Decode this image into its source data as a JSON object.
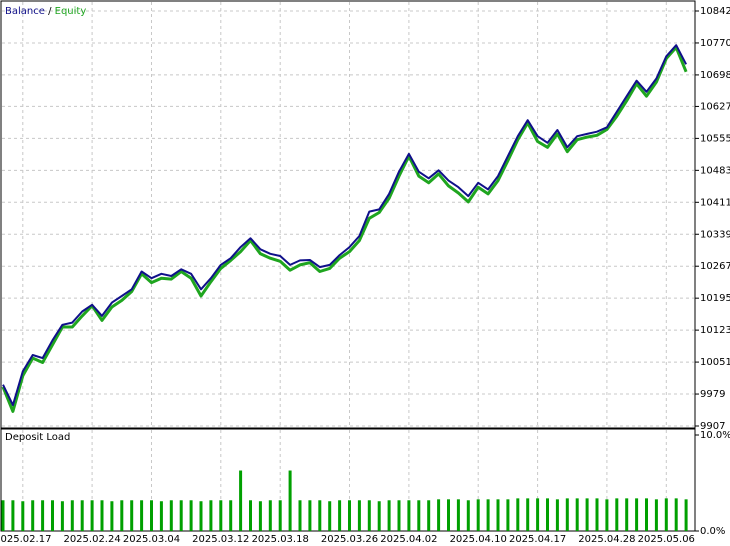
{
  "chart_data": [
    {
      "type": "line",
      "legend_separator": "/",
      "series": [
        {
          "name": "Balance",
          "color": "#10108a",
          "values": [
            10000,
            9954,
            10030,
            10067,
            10060,
            10100,
            10135,
            10140,
            10165,
            10180,
            10155,
            10185,
            10200,
            10215,
            10255,
            10240,
            10250,
            10245,
            10260,
            10250,
            10215,
            10240,
            10270,
            10285,
            10310,
            10330,
            10305,
            10295,
            10290,
            10270,
            10280,
            10281,
            10265,
            10270,
            10292,
            10310,
            10335,
            10390,
            10395,
            10430,
            10480,
            10520,
            10480,
            10465,
            10483,
            10460,
            10445,
            10425,
            10455,
            10440,
            10470,
            10515,
            10560,
            10596,
            10560,
            10545,
            10574,
            10535,
            10560,
            10565,
            10570,
            10580,
            10615,
            10650,
            10685,
            10660,
            10690,
            10740,
            10765,
            10722
          ]
        },
        {
          "name": "Equity",
          "color": "#1fa51f",
          "values": [
            9995,
            9940,
            10020,
            10060,
            10050,
            10090,
            10130,
            10130,
            10155,
            10178,
            10145,
            10175,
            10190,
            10210,
            10250,
            10230,
            10240,
            10238,
            10255,
            10240,
            10200,
            10232,
            10262,
            10280,
            10300,
            10325,
            10295,
            10285,
            10278,
            10258,
            10270,
            10275,
            10255,
            10262,
            10285,
            10300,
            10325,
            10375,
            10388,
            10420,
            10470,
            10515,
            10470,
            10455,
            10475,
            10448,
            10432,
            10412,
            10445,
            10430,
            10460,
            10505,
            10552,
            10590,
            10548,
            10535,
            10565,
            10525,
            10552,
            10558,
            10562,
            10575,
            10605,
            10640,
            10678,
            10650,
            10682,
            10735,
            10760,
            10705
          ]
        }
      ],
      "ylim": [
        9907,
        10842
      ],
      "yticks": [
        9907,
        9979,
        10051,
        10123,
        10195,
        10267,
        10339,
        10411,
        10483,
        10555,
        10627,
        10698,
        10770,
        10842
      ],
      "grid": true
    },
    {
      "type": "bar",
      "title": "Deposit Load",
      "color": "#00a000",
      "categories": [
        null,
        null,
        "2025.02.17",
        null,
        null,
        null,
        null,
        null,
        null,
        "2025.02.24",
        null,
        null,
        null,
        null,
        null,
        "2025.03.04",
        null,
        null,
        null,
        null,
        null,
        null,
        "2025.03.12",
        null,
        null,
        null,
        null,
        null,
        "2025.03.18",
        null,
        null,
        null,
        null,
        null,
        null,
        "2025.03.26",
        null,
        null,
        null,
        null,
        null,
        "2025.04.02",
        null,
        null,
        null,
        null,
        null,
        null,
        "2025.04.10",
        null,
        null,
        null,
        null,
        null,
        "2025.04.17",
        null,
        null,
        null,
        null,
        null,
        null,
        "2025.04.28",
        null,
        null,
        null,
        null,
        null,
        "2025.05.06",
        null,
        null
      ],
      "values": [
        3.2,
        3.2,
        3.1,
        3.2,
        3.2,
        3.2,
        3.1,
        3.2,
        3.2,
        3.2,
        3.2,
        3.1,
        3.2,
        3.2,
        3.2,
        3.2,
        3.1,
        3.2,
        3.2,
        3.2,
        3.1,
        3.2,
        3.2,
        3.2,
        6.3,
        3.2,
        3.1,
        3.2,
        3.2,
        6.3,
        3.2,
        3.2,
        3.2,
        3.1,
        3.2,
        3.2,
        3.2,
        3.2,
        3.1,
        3.2,
        3.2,
        3.2,
        3.2,
        3.2,
        3.3,
        3.3,
        3.3,
        3.2,
        3.3,
        3.3,
        3.3,
        3.3,
        3.4,
        3.4,
        3.4,
        3.4,
        3.3,
        3.4,
        3.4,
        3.4,
        3.4,
        3.3,
        3.4,
        3.4,
        3.4,
        3.4,
        3.3,
        3.4,
        3.4,
        3.3
      ],
      "ylim": [
        0,
        10
      ],
      "yticks": [
        {
          "value": 0,
          "label": "0.0%"
        },
        {
          "value": 10,
          "label": "10.0%"
        }
      ],
      "grid": true
    }
  ]
}
